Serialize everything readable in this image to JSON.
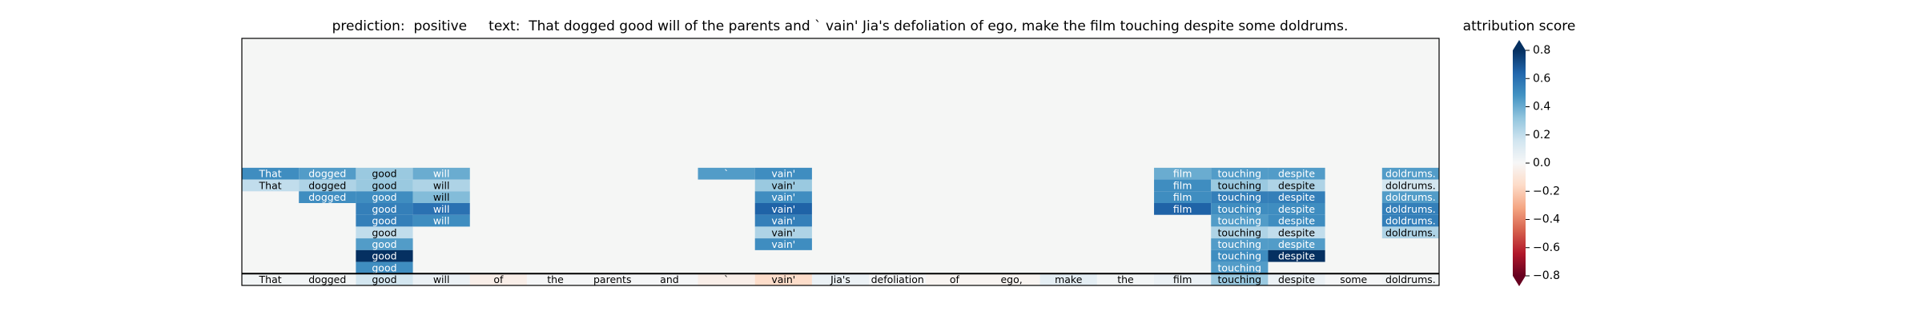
{
  "chart_data": {
    "type": "heatmap",
    "title": "prediction:  positive     text:  That dogged good will of the parents and ` vain' Jia's defoliation of ego, make the film touching despite some doldrums.",
    "colorbar_label": "attribution score",
    "categories": [
      "That",
      "dogged",
      "good",
      "will",
      "of",
      "the",
      "parents",
      "and",
      "`",
      "vain'",
      "Jia's",
      "defoliation",
      "of",
      "ego,",
      "make",
      "the",
      "film",
      "touching",
      "despite",
      "some",
      "doldrums."
    ],
    "rows": [
      [
        0.5,
        0.45,
        0.3,
        0.4,
        null,
        null,
        null,
        null,
        0.45,
        0.5,
        null,
        null,
        null,
        null,
        null,
        null,
        0.4,
        0.45,
        0.45,
        null,
        0.45
      ],
      [
        0.2,
        0.25,
        0.3,
        0.25,
        null,
        null,
        null,
        null,
        null,
        0.3,
        null,
        null,
        null,
        null,
        null,
        null,
        0.5,
        0.3,
        0.25,
        null,
        0.15
      ],
      [
        null,
        0.5,
        0.5,
        0.35,
        null,
        null,
        null,
        null,
        null,
        0.5,
        null,
        null,
        null,
        null,
        null,
        null,
        0.5,
        0.55,
        0.55,
        null,
        0.45
      ],
      [
        null,
        null,
        0.55,
        0.6,
        null,
        null,
        null,
        null,
        null,
        0.65,
        null,
        null,
        null,
        null,
        null,
        null,
        0.65,
        0.5,
        0.5,
        null,
        0.55
      ],
      [
        null,
        null,
        0.55,
        0.5,
        null,
        null,
        null,
        null,
        null,
        0.55,
        null,
        null,
        null,
        null,
        null,
        null,
        null,
        0.45,
        0.5,
        null,
        0.55
      ],
      [
        null,
        null,
        0.2,
        null,
        null,
        null,
        null,
        null,
        null,
        0.25,
        null,
        null,
        null,
        null,
        null,
        null,
        null,
        0.25,
        0.2,
        null,
        0.25
      ],
      [
        null,
        null,
        0.45,
        null,
        null,
        null,
        null,
        null,
        null,
        0.5,
        null,
        null,
        null,
        null,
        null,
        null,
        null,
        0.45,
        0.45,
        null,
        null
      ],
      [
        null,
        null,
        0.8,
        null,
        null,
        null,
        null,
        null,
        null,
        null,
        null,
        null,
        null,
        null,
        null,
        null,
        null,
        0.5,
        0.8,
        null,
        null
      ],
      [
        null,
        null,
        0.5,
        null,
        null,
        null,
        null,
        null,
        null,
        null,
        null,
        null,
        null,
        null,
        null,
        null,
        null,
        0.45,
        null,
        null,
        null
      ]
    ],
    "base_values": [
      0.02,
      0.02,
      0.15,
      0.05,
      -0.05,
      0.01,
      0.01,
      0.01,
      -0.05,
      -0.15,
      0.05,
      0.01,
      -0.02,
      -0.02,
      0.08,
      0.02,
      0.05,
      0.3,
      0.05,
      0.01,
      0.02
    ],
    "clim": [
      -0.8,
      0.8
    ],
    "yticks": [
      {
        "value": -0.8,
        "label": "−0.8"
      },
      {
        "value": -0.6,
        "label": "−0.6"
      },
      {
        "value": -0.4,
        "label": "−0.4"
      },
      {
        "value": -0.2,
        "label": "−0.2"
      },
      {
        "value": 0.0,
        "label": "0.0"
      },
      0.2,
      0.4,
      0.6,
      0.8
    ],
    "background": "#f5f6f5"
  }
}
